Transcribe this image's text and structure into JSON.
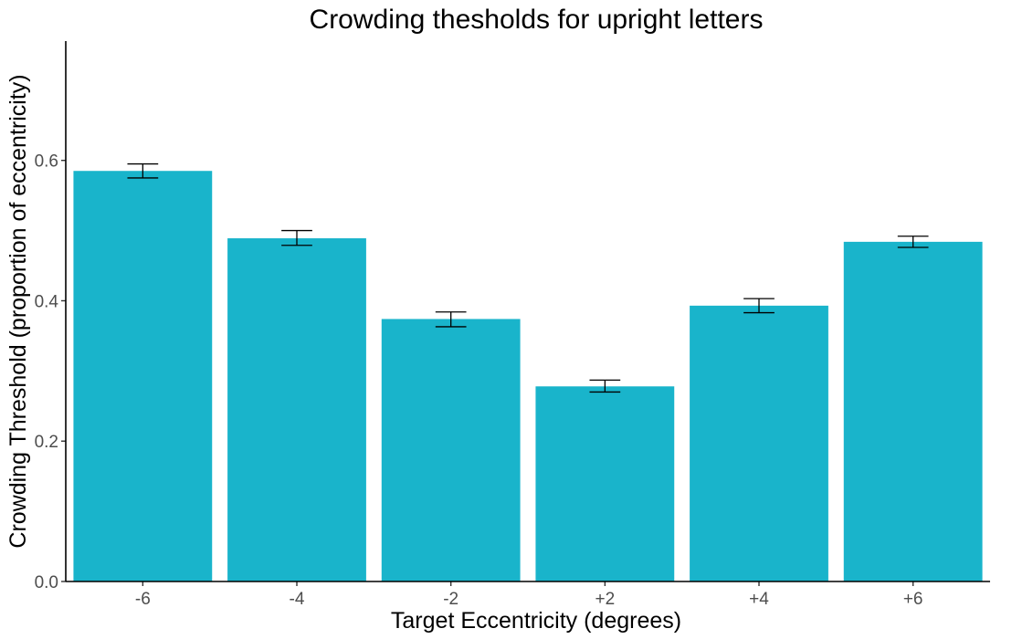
{
  "chart_data": {
    "type": "bar",
    "title": "Crowding thesholds for upright letters",
    "xlabel": "Target Eccentricity (degrees)",
    "ylabel": "Crowding Threshold (proportion of eccentricity)",
    "categories": [
      "-6",
      "-4",
      "-2",
      "+2",
      "+4",
      "+6"
    ],
    "values": [
      0.585,
      0.489,
      0.374,
      0.278,
      0.393,
      0.484
    ],
    "error_low": [
      0.575,
      0.479,
      0.363,
      0.27,
      0.383,
      0.476
    ],
    "error_high": [
      0.595,
      0.5,
      0.384,
      0.287,
      0.403,
      0.492
    ],
    "ylim": [
      0,
      0.77
    ],
    "yticks": [
      "0.0",
      "0.2",
      "0.4",
      "0.6"
    ],
    "bar_color": "#19B4CB",
    "grid": false,
    "legend": "none"
  }
}
